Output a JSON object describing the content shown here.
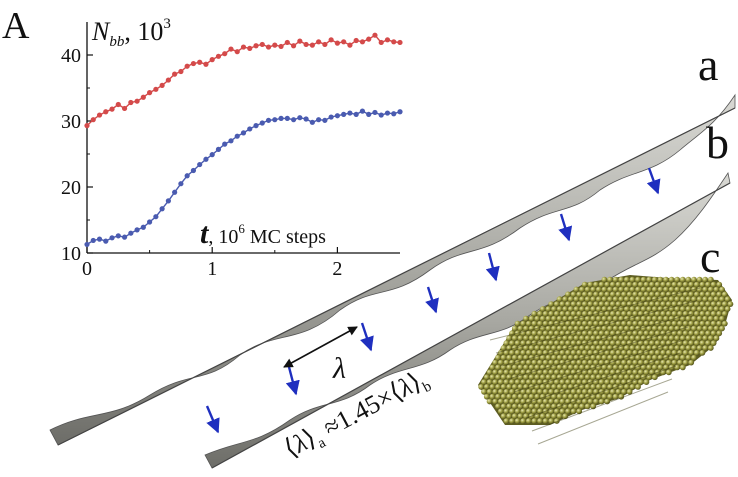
{
  "panels": {
    "a": "A",
    "ribbon_a": "a",
    "ribbon_b": "b",
    "panel_c": "c"
  },
  "colors": {
    "red_series": "#d44a4a",
    "blue_series": "#4a5bb0",
    "arrow": "#1f2fbf",
    "ribbon": "#9a9a95",
    "crystal": "#8a8a38"
  },
  "chart_data": {
    "type": "scatter",
    "ylabel": "N_bb, 10^3",
    "xlabel": "t, 10^6 MC steps",
    "xlim": [
      0,
      2.5
    ],
    "ylim": [
      10,
      45
    ],
    "xticks": [
      "0",
      "1",
      "2"
    ],
    "yticks": [
      "10",
      "20",
      "30",
      "40"
    ],
    "grid": false,
    "series": [
      {
        "color": "#d44a4a",
        "x": [
          0,
          0.05,
          0.1,
          0.15,
          0.2,
          0.25,
          0.3,
          0.35,
          0.4,
          0.45,
          0.5,
          0.55,
          0.6,
          0.65,
          0.7,
          0.75,
          0.8,
          0.85,
          0.9,
          0.95,
          1.0,
          1.05,
          1.1,
          1.15,
          1.2,
          1.25,
          1.3,
          1.35,
          1.4,
          1.45,
          1.5,
          1.55,
          1.6,
          1.65,
          1.7,
          1.75,
          1.8,
          1.85,
          1.9,
          1.95,
          2.0,
          2.05,
          2.1,
          2.15,
          2.2,
          2.25,
          2.3,
          2.35,
          2.4,
          2.45,
          2.5
        ],
        "y": [
          29.3,
          30.2,
          30.9,
          31.4,
          31.8,
          32.5,
          31.9,
          32.8,
          33.0,
          33.6,
          34.3,
          34.8,
          35.4,
          36.2,
          37.1,
          37.5,
          38.3,
          38.7,
          38.9,
          38.6,
          39.3,
          39.8,
          40.2,
          40.9,
          40.5,
          41.2,
          41.0,
          41.4,
          41.6,
          41.2,
          41.5,
          41.3,
          41.9,
          41.4,
          42.1,
          41.6,
          41.5,
          42.0,
          41.6,
          42.3,
          41.8,
          42.0,
          41.5,
          42.2,
          42.0,
          42.4,
          43.0,
          41.9,
          42.3,
          42.0,
          41.9
        ]
      },
      {
        "color": "#4a5bb0",
        "x": [
          0,
          0.05,
          0.1,
          0.15,
          0.2,
          0.25,
          0.3,
          0.35,
          0.4,
          0.45,
          0.5,
          0.55,
          0.6,
          0.65,
          0.7,
          0.75,
          0.8,
          0.85,
          0.9,
          0.95,
          1.0,
          1.05,
          1.1,
          1.15,
          1.2,
          1.25,
          1.3,
          1.35,
          1.4,
          1.45,
          1.5,
          1.55,
          1.6,
          1.65,
          1.7,
          1.75,
          1.8,
          1.85,
          1.9,
          1.95,
          2.0,
          2.05,
          2.1,
          2.15,
          2.2,
          2.25,
          2.3,
          2.35,
          2.4,
          2.45,
          2.5
        ],
        "y": [
          11.3,
          11.9,
          12.1,
          11.8,
          12.3,
          12.6,
          12.4,
          13.0,
          13.5,
          13.9,
          14.7,
          15.5,
          16.7,
          17.9,
          19.2,
          20.5,
          21.7,
          22.5,
          23.4,
          24.2,
          24.9,
          25.7,
          26.5,
          27.0,
          27.7,
          28.2,
          28.8,
          29.3,
          29.7,
          30.1,
          30.2,
          30.4,
          30.4,
          30.2,
          30.5,
          30.3,
          29.8,
          30.2,
          30.1,
          30.6,
          30.8,
          31.0,
          31.2,
          31.0,
          31.5,
          31.0,
          31.3,
          30.9,
          31.2,
          31.1,
          31.4
        ]
      }
    ]
  },
  "chart_text": {
    "y_name": "N",
    "y_sub": "bb",
    "y_unit": ", 10",
    "y_exp": "3",
    "x_name": "t",
    "x_unit": ", 10",
    "x_exp": "6",
    "x_tail": " MC steps"
  },
  "annotations": {
    "lambda": "λ",
    "ratio": {
      "open": "⟨",
      "lambda": "λ",
      "close": "⟩",
      "sub_a": "a",
      "approx": " ≈1.45×",
      "sub_b": "b"
    }
  }
}
